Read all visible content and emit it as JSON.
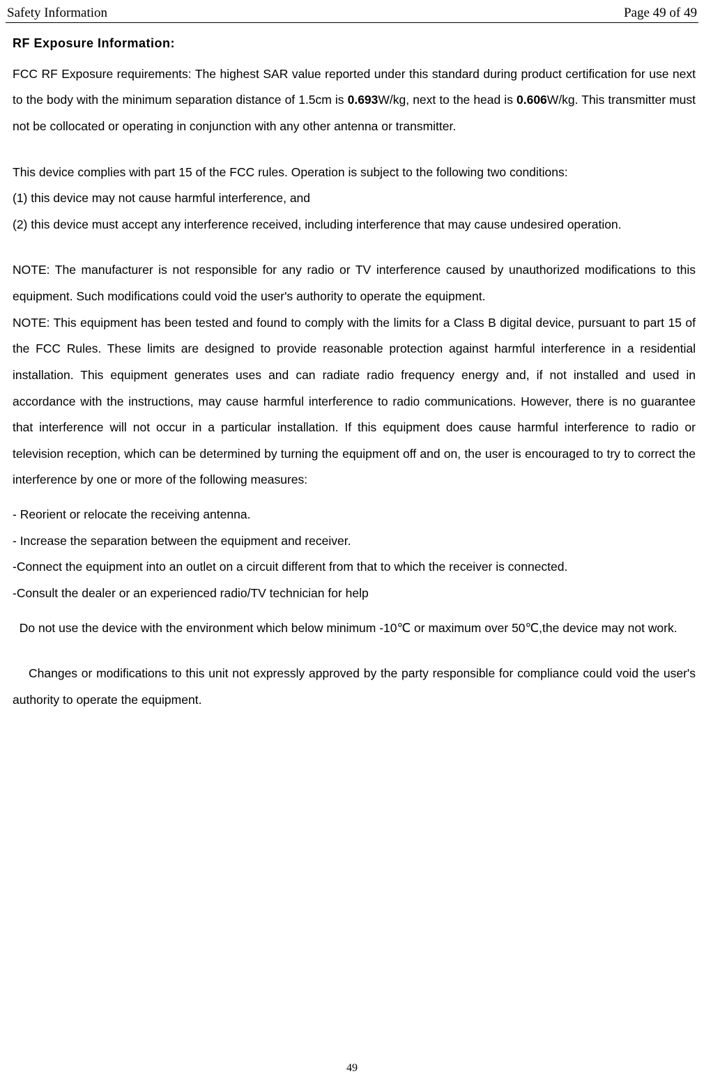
{
  "header": {
    "left": "Safety Information",
    "right": "Page 49 of 49"
  },
  "title": "RF Exposure Information:",
  "para1_a": "FCC RF Exposure requirements: The highest SAR value reported under this standard during product certification for use next to the body with the minimum separation distance of 1.5cm is ",
  "sar_body": "0.693",
  "unit1": "W/kg",
  "para1_b": ", next to the head is ",
  "sar_head": "0.606",
  "unit2": "W/kg",
  "para1_c": ". This transmitter must not be collocated or operating in conjunction with any other antenna or transmitter.",
  "para2": "This device complies with part 15 of the FCC rules. Operation is subject to the following two conditions:",
  "cond1": "(1) this device may not cause harmful interference, and",
  "cond2": "(2) this device must accept any interference received, including interference that may cause undesired operation.",
  "note1": "NOTE: The manufacturer is not responsible for any radio or TV interference caused by unauthorized modifications to this equipment. Such modifications could void the user's authority to operate the equipment.",
  "note2": "NOTE: This equipment has been tested and found to comply with the limits for a Class B digital device, pursuant to part 15 of the FCC Rules. These limits are designed to provide reasonable protection against harmful interference in a residential installation. This equipment generates uses and can radiate radio frequency energy and, if not installed and used in accordance with the instructions, may cause harmful interference to radio communications. However, there is no guarantee that interference will not occur in a particular installation. If this equipment does cause harmful interference to radio or television reception, which can be determined by turning the equipment off and on, the user is encouraged to try to correct the interference by one or more of the following measures:",
  "m1": "- Reorient or relocate the receiving antenna.",
  "m2": "- Increase the separation between the equipment and receiver.",
  "m3": "-Connect the equipment into an outlet on a circuit different from that to which the receiver is connected.",
  "m4": "-Consult the dealer or an experienced radio/TV technician for help",
  "temp_note": "  Do not use the device with the environment which below minimum -10℃ or maximum over 50℃,the device may not work.",
  "changes_note": "    Changes or modifications to this unit not expressly approved by the party responsible for compliance could void the user's authority to operate the equipment.",
  "footer": "49"
}
